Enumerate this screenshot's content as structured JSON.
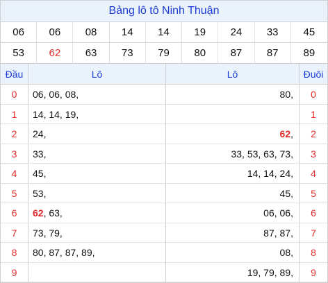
{
  "title": "Bảng lô tô Ninh Thuận",
  "numbers": [
    {
      "v": "06",
      "hl": false
    },
    {
      "v": "06",
      "hl": false
    },
    {
      "v": "08",
      "hl": false
    },
    {
      "v": "14",
      "hl": false
    },
    {
      "v": "14",
      "hl": false
    },
    {
      "v": "19",
      "hl": false
    },
    {
      "v": "24",
      "hl": false
    },
    {
      "v": "33",
      "hl": false
    },
    {
      "v": "45",
      "hl": false
    },
    {
      "v": "53",
      "hl": false
    },
    {
      "v": "62",
      "hl": true
    },
    {
      "v": "63",
      "hl": false
    },
    {
      "v": "73",
      "hl": false
    },
    {
      "v": "79",
      "hl": false
    },
    {
      "v": "80",
      "hl": false
    },
    {
      "v": "87",
      "hl": false
    },
    {
      "v": "87",
      "hl": false
    },
    {
      "v": "89",
      "hl": false
    }
  ],
  "headers": {
    "dau": "Đầu",
    "lo_left": "Lô",
    "lo_right": "Lô",
    "duoi": "Đuôi"
  },
  "rows": [
    {
      "dau": "0",
      "left": [
        {
          "t": "06, 06, 08,"
        }
      ],
      "right": [
        {
          "t": "80,"
        }
      ],
      "duoi": "0"
    },
    {
      "dau": "1",
      "left": [
        {
          "t": "14, 14, 19,"
        }
      ],
      "right": [],
      "duoi": "1"
    },
    {
      "dau": "2",
      "left": [
        {
          "t": "24,"
        }
      ],
      "right": [
        {
          "t": "62",
          "b": true
        },
        {
          "t": ","
        }
      ],
      "duoi": "2"
    },
    {
      "dau": "3",
      "left": [
        {
          "t": "33,"
        }
      ],
      "right": [
        {
          "t": "33, 53, 63, 73,"
        }
      ],
      "duoi": "3"
    },
    {
      "dau": "4",
      "left": [
        {
          "t": "45,"
        }
      ],
      "right": [
        {
          "t": "14, 14, 24,"
        }
      ],
      "duoi": "4"
    },
    {
      "dau": "5",
      "left": [
        {
          "t": "53,"
        }
      ],
      "right": [
        {
          "t": "45,"
        }
      ],
      "duoi": "5"
    },
    {
      "dau": "6",
      "left": [
        {
          "t": "62",
          "b": true
        },
        {
          "t": ", 63,"
        }
      ],
      "right": [
        {
          "t": "06, 06,"
        }
      ],
      "duoi": "6"
    },
    {
      "dau": "7",
      "left": [
        {
          "t": "73, 79,"
        }
      ],
      "right": [
        {
          "t": "87, 87,"
        }
      ],
      "duoi": "7"
    },
    {
      "dau": "8",
      "left": [
        {
          "t": "80, 87, 87, 89,"
        }
      ],
      "right": [
        {
          "t": "08,"
        }
      ],
      "duoi": "8"
    },
    {
      "dau": "9",
      "left": [],
      "right": [
        {
          "t": "19, 79, 89,"
        }
      ],
      "duoi": "9"
    }
  ],
  "colors": {
    "accent": "#1a3bd6",
    "highlight": "#e32b2b",
    "header_bg": "#eaf2fb"
  }
}
